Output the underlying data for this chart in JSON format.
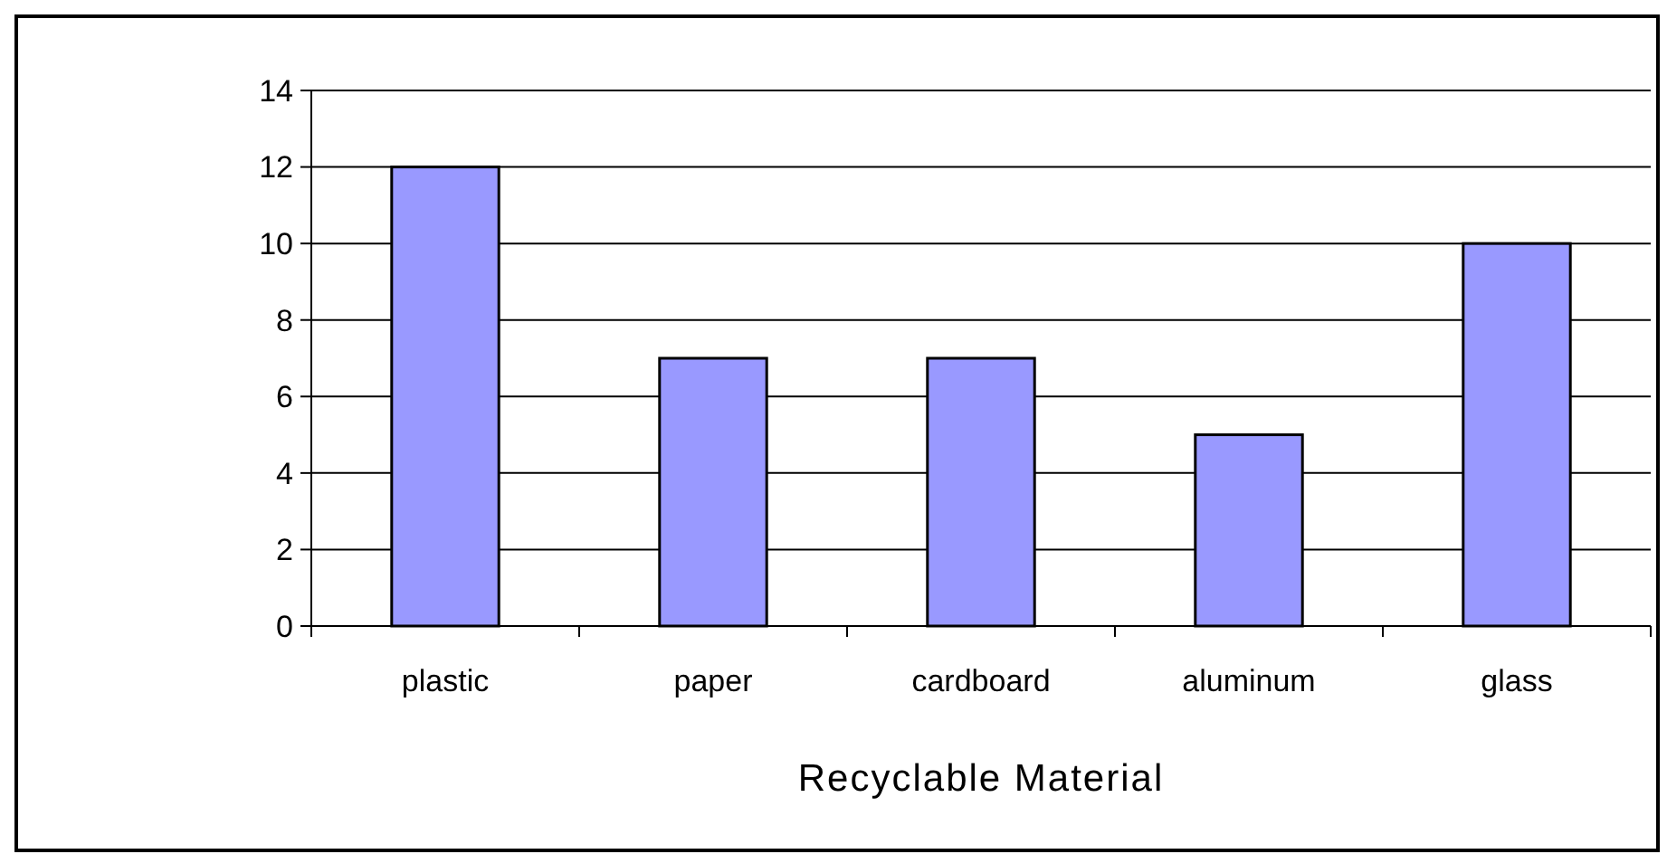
{
  "chart_data": {
    "type": "bar",
    "xlabel": "Recyclable Material",
    "categories": [
      "plastic",
      "paper",
      "cardboard",
      "aluminum",
      "glass"
    ],
    "values": [
      12,
      7,
      7,
      5,
      10
    ],
    "color": "#9999ff",
    "ylim": [
      0,
      14
    ],
    "yticks": [
      0,
      2,
      4,
      6,
      8,
      10,
      12,
      14
    ],
    "grid": "y"
  }
}
